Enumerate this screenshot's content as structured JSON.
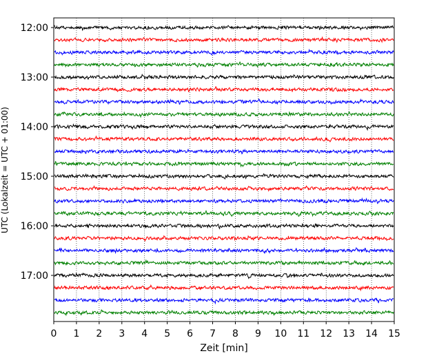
{
  "chart_data": {
    "type": "line",
    "title": "",
    "xlabel": "Zeit  [min]",
    "ylabel": "UTC (Lokalzeit = UTC + 01:00)",
    "xlim": [
      0,
      15
    ],
    "x_ticks": [
      "0",
      "1",
      "2",
      "3",
      "4",
      "5",
      "6",
      "7",
      "8",
      "9",
      "10",
      "11",
      "12",
      "13",
      "14",
      "15"
    ],
    "y_ticks": [
      "12:00",
      "13:00",
      "14:00",
      "15:00",
      "16:00",
      "17:00"
    ],
    "grid": "vertical dotted",
    "trace_interval_minutes": 15,
    "trace_start": "12:00",
    "trace_count": 24,
    "color_cycle": [
      "#000000",
      "#ff0000",
      "#0000ff",
      "#008000"
    ],
    "series": [
      {
        "start": "12:00",
        "color": "#000000"
      },
      {
        "start": "12:15",
        "color": "#ff0000"
      },
      {
        "start": "12:30",
        "color": "#0000ff"
      },
      {
        "start": "12:45",
        "color": "#008000"
      },
      {
        "start": "13:00",
        "color": "#000000"
      },
      {
        "start": "13:15",
        "color": "#ff0000"
      },
      {
        "start": "13:30",
        "color": "#0000ff"
      },
      {
        "start": "13:45",
        "color": "#008000"
      },
      {
        "start": "14:00",
        "color": "#000000"
      },
      {
        "start": "14:15",
        "color": "#ff0000"
      },
      {
        "start": "14:30",
        "color": "#0000ff"
      },
      {
        "start": "14:45",
        "color": "#008000"
      },
      {
        "start": "15:00",
        "color": "#000000"
      },
      {
        "start": "15:15",
        "color": "#ff0000"
      },
      {
        "start": "15:30",
        "color": "#0000ff"
      },
      {
        "start": "15:45",
        "color": "#008000"
      },
      {
        "start": "16:00",
        "color": "#000000"
      },
      {
        "start": "16:15",
        "color": "#ff0000"
      },
      {
        "start": "16:30",
        "color": "#0000ff"
      },
      {
        "start": "16:45",
        "color": "#008000"
      },
      {
        "start": "17:00",
        "color": "#000000"
      },
      {
        "start": "17:15",
        "color": "#ff0000"
      },
      {
        "start": "17:30",
        "color": "#0000ff"
      },
      {
        "start": "17:45",
        "color": "#008000"
      }
    ]
  }
}
